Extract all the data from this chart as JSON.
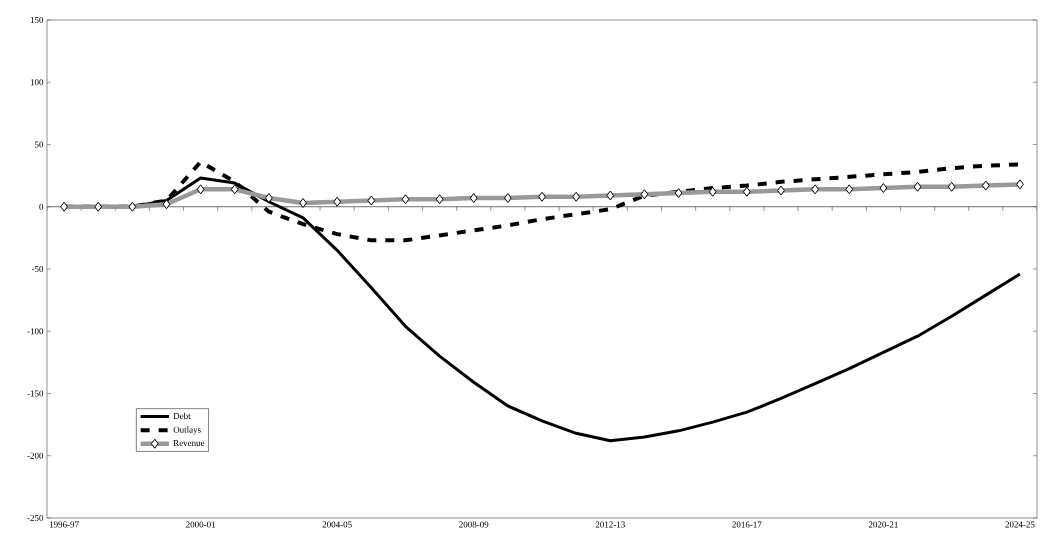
{
  "chart_data": {
    "type": "line",
    "categories": [
      "1996-97",
      null,
      null,
      null,
      "2000-01",
      null,
      null,
      null,
      "2004-05",
      null,
      null,
      null,
      "2008-09",
      null,
      null,
      null,
      "2012-13",
      null,
      null,
      null,
      "2016-17",
      null,
      null,
      null,
      "2020-21",
      null,
      null,
      null,
      "2024-25"
    ],
    "series": [
      {
        "name": "Debt",
        "color": "#000000",
        "line_style": "solid",
        "marker": "none",
        "values": [
          0,
          0,
          0,
          5,
          23,
          19,
          4,
          -9,
          -35,
          -65,
          -96,
          -120,
          -141,
          -160,
          -172,
          -182,
          -188,
          -185,
          -180,
          -173,
          -165,
          -154,
          -142,
          -130,
          -117,
          -104,
          -88,
          -71,
          -54
        ]
      },
      {
        "name": "Outlays",
        "color": "#000000",
        "line_style": "dashed",
        "marker": "none",
        "values": [
          0,
          0,
          0,
          5,
          36,
          20,
          -4,
          -14,
          -22,
          -27,
          -27,
          -23,
          -19,
          -15,
          -10,
          -6,
          -2,
          9,
          12,
          15,
          17,
          20,
          22,
          24,
          26,
          28,
          31,
          33,
          34
        ]
      },
      {
        "name": "Revenue",
        "color": "#999999",
        "line_style": "solid",
        "marker": "diamond",
        "values": [
          0,
          0,
          0,
          2,
          14,
          14,
          7,
          3,
          4,
          5,
          6,
          6,
          7,
          7,
          8,
          8,
          9,
          10,
          11,
          12,
          12,
          13,
          14,
          14,
          15,
          16,
          16,
          17,
          18
        ]
      }
    ],
    "ylim": [
      -250,
      150
    ],
    "yticks": [
      -250,
      -200,
      -150,
      -100,
      -50,
      0,
      50,
      100,
      150
    ],
    "legend": "bottom left"
  }
}
